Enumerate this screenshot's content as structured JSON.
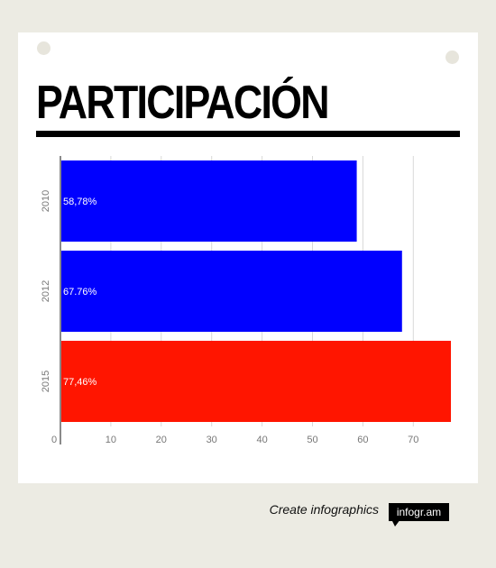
{
  "title": "PARTICIPACIÓN",
  "footer": {
    "cta_text": "Create infographics",
    "brand": "infogr.am"
  },
  "colors": {
    "blue": "#0000ff",
    "red": "#ff1500",
    "grid": "#d8d8d8",
    "axis": "#8a8a8a",
    "tick": "#777777"
  },
  "chart_data": {
    "type": "bar",
    "orientation": "horizontal",
    "categories": [
      "2010",
      "2012",
      "2015"
    ],
    "values": [
      58.78,
      67.76,
      77.46
    ],
    "data_labels": [
      "58,78%",
      "67.76%",
      "77,46%"
    ],
    "bar_colors": [
      "#0000ff",
      "#0000ff",
      "#ff1500"
    ],
    "xlim": [
      0,
      77.46
    ],
    "x_ticks": [
      0,
      10,
      20,
      30,
      40,
      50,
      60,
      70
    ],
    "grid": true
  }
}
